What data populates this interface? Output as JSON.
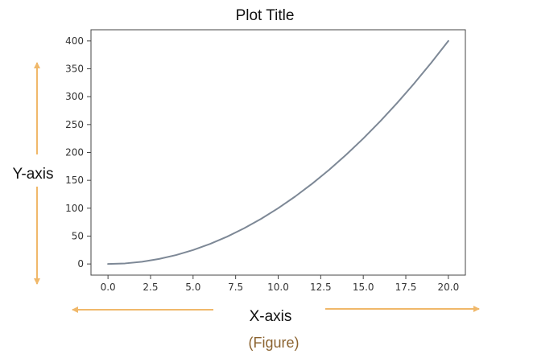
{
  "colors": {
    "line": "#7d8896",
    "axes": "#444444",
    "arrow": "#f0b86a",
    "caption": "#8b6330"
  },
  "chart_data": {
    "type": "line",
    "title": "Plot Title",
    "xlabel": "X-axis",
    "ylabel": "Y-axis",
    "xlim": [
      -1.0,
      21.0
    ],
    "ylim": [
      -20,
      420
    ],
    "x_ticks": [
      0.0,
      2.5,
      5.0,
      7.5,
      10.0,
      12.5,
      15.0,
      17.5,
      20.0
    ],
    "x_tick_labels": [
      "0.0",
      "2.5",
      "5.0",
      "7.5",
      "10.0",
      "12.5",
      "15.0",
      "17.5",
      "20.0"
    ],
    "y_ticks": [
      0,
      50,
      100,
      150,
      200,
      250,
      300,
      350,
      400
    ],
    "y_tick_labels": [
      "0",
      "50",
      "100",
      "150",
      "200",
      "250",
      "300",
      "350",
      "400"
    ],
    "grid": false,
    "series": [
      {
        "x": [
          0,
          1,
          2,
          3,
          4,
          5,
          6,
          7,
          8,
          9,
          10,
          11,
          12,
          13,
          14,
          15,
          16,
          17,
          18,
          19,
          20
        ],
        "values": [
          0,
          1,
          4,
          9,
          16,
          25,
          36,
          49,
          64,
          81,
          100,
          121,
          144,
          169,
          196,
          225,
          256,
          289,
          324,
          361,
          400
        ]
      }
    ]
  },
  "caption": "(Figure)"
}
